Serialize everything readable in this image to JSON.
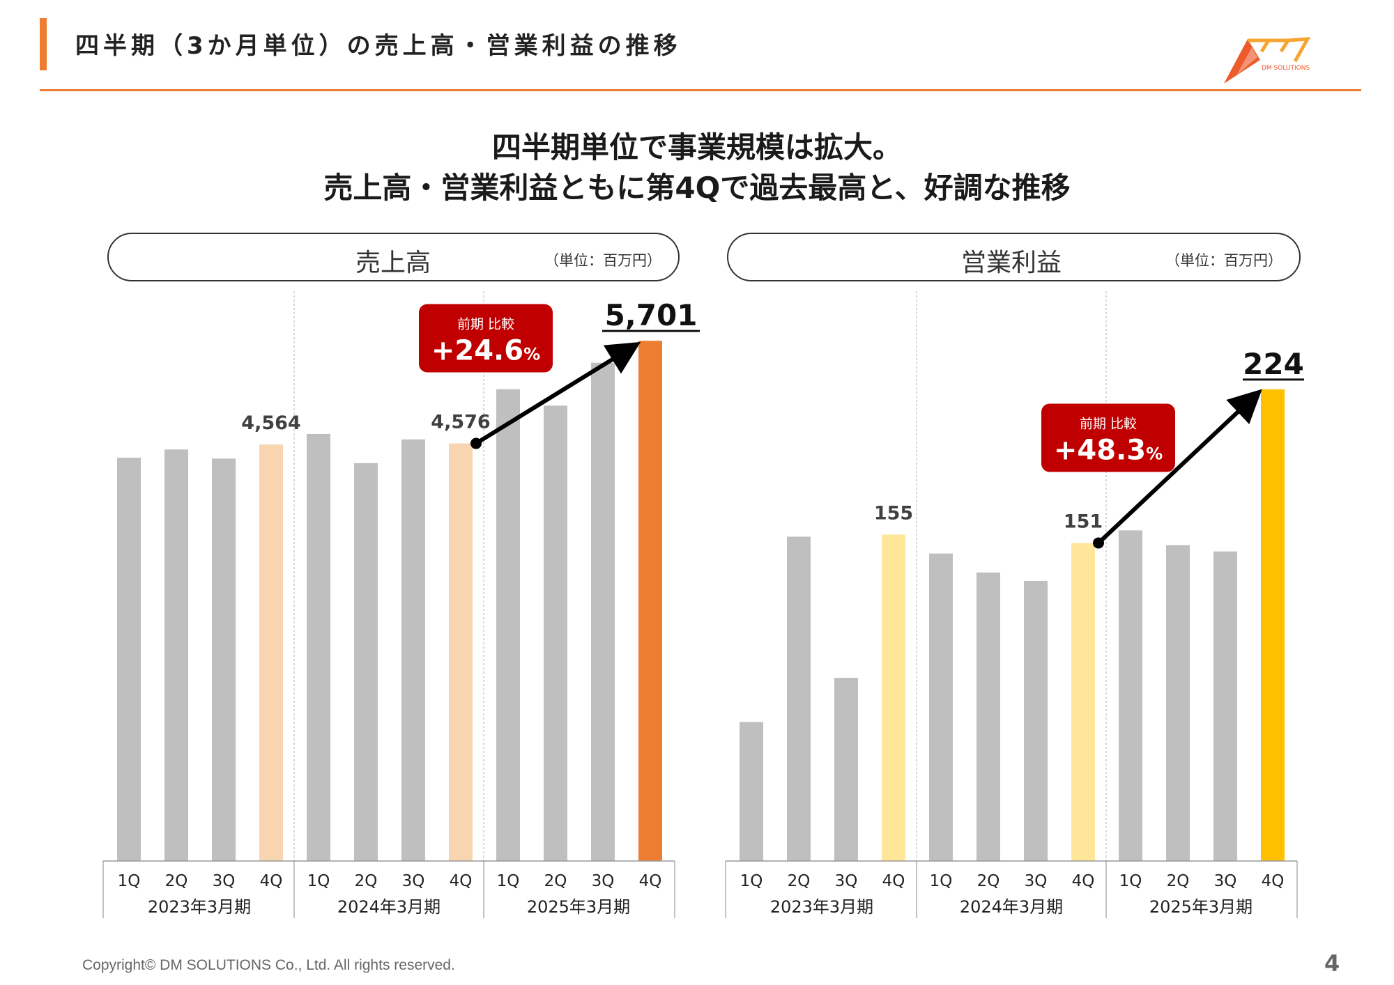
{
  "header": {
    "title": "四半期（3か月単位）の売上高・営業利益の推移",
    "logo_text": "DM SOLUTIONS",
    "accent_color": "#ED7D31"
  },
  "headline": {
    "line1": "四半期単位で事業規模は拡大。",
    "line2": "売上高・営業利益ともに第4Qで過去最高と、好調な推移"
  },
  "charts": {
    "sales": {
      "title": "売上高",
      "unit": "（単位：百万円）"
    },
    "op": {
      "title": "営業利益",
      "unit": "（単位：百万円）"
    }
  },
  "chart_data": [
    {
      "type": "bar",
      "title": "売上高",
      "unit": "（単位：百万円）",
      "categories": [
        "1Q",
        "2Q",
        "3Q",
        "4Q",
        "1Q",
        "2Q",
        "3Q",
        "4Q",
        "1Q",
        "2Q",
        "3Q",
        "4Q"
      ],
      "groups": [
        "2023年3月期",
        "2024年3月期",
        "2025年3月期"
      ],
      "values": [
        4420,
        4510,
        4410,
        4564,
        4680,
        4360,
        4620,
        4576,
        5170,
        4990,
        5460,
        5701
      ],
      "labels": [
        null,
        null,
        null,
        "4,564",
        null,
        null,
        null,
        "4,576",
        null,
        null,
        null,
        "5,701"
      ],
      "colors": [
        "#BFBFBF",
        "#BFBFBF",
        "#BFBFBF",
        "#F8D5B0",
        "#BFBFBF",
        "#BFBFBF",
        "#BFBFBF",
        "#F8D5B0",
        "#BFBFBF",
        "#BFBFBF",
        "#BFBFBF",
        "#ED7D31"
      ],
      "callout": {
        "label": "前期 比較",
        "value": "+24.6",
        "suffix": "%",
        "color": "#C00000"
      },
      "arrow": {
        "from": 7,
        "to": 11
      },
      "ylim": [
        0,
        6000
      ],
      "grid": false
    },
    {
      "type": "bar",
      "title": "営業利益",
      "unit": "（単位：百万円）",
      "categories": [
        "1Q",
        "2Q",
        "3Q",
        "4Q",
        "1Q",
        "2Q",
        "3Q",
        "4Q",
        "1Q",
        "2Q",
        "3Q",
        "4Q"
      ],
      "groups": [
        "2023年3月期",
        "2024年3月期",
        "2025年3月期"
      ],
      "values": [
        66,
        154,
        87,
        155,
        146,
        137,
        133,
        151,
        157,
        150,
        147,
        224
      ],
      "labels": [
        null,
        null,
        null,
        "155",
        null,
        null,
        null,
        "151",
        null,
        null,
        null,
        "224"
      ],
      "colors": [
        "#BFBFBF",
        "#BFBFBF",
        "#BFBFBF",
        "#FFE699",
        "#BFBFBF",
        "#BFBFBF",
        "#BFBFBF",
        "#FFE699",
        "#BFBFBF",
        "#BFBFBF",
        "#BFBFBF",
        "#FFC000"
      ],
      "callout": {
        "label": "前期 比較",
        "value": "+48.3",
        "suffix": "%",
        "color": "#C00000"
      },
      "arrow": {
        "from": 7,
        "to": 11
      },
      "ylim": [
        0,
        260
      ],
      "grid": false
    }
  ],
  "footer": {
    "copyright": "Copyright© DM SOLUTIONS Co., Ltd. All rights reserved.",
    "page": "4"
  }
}
